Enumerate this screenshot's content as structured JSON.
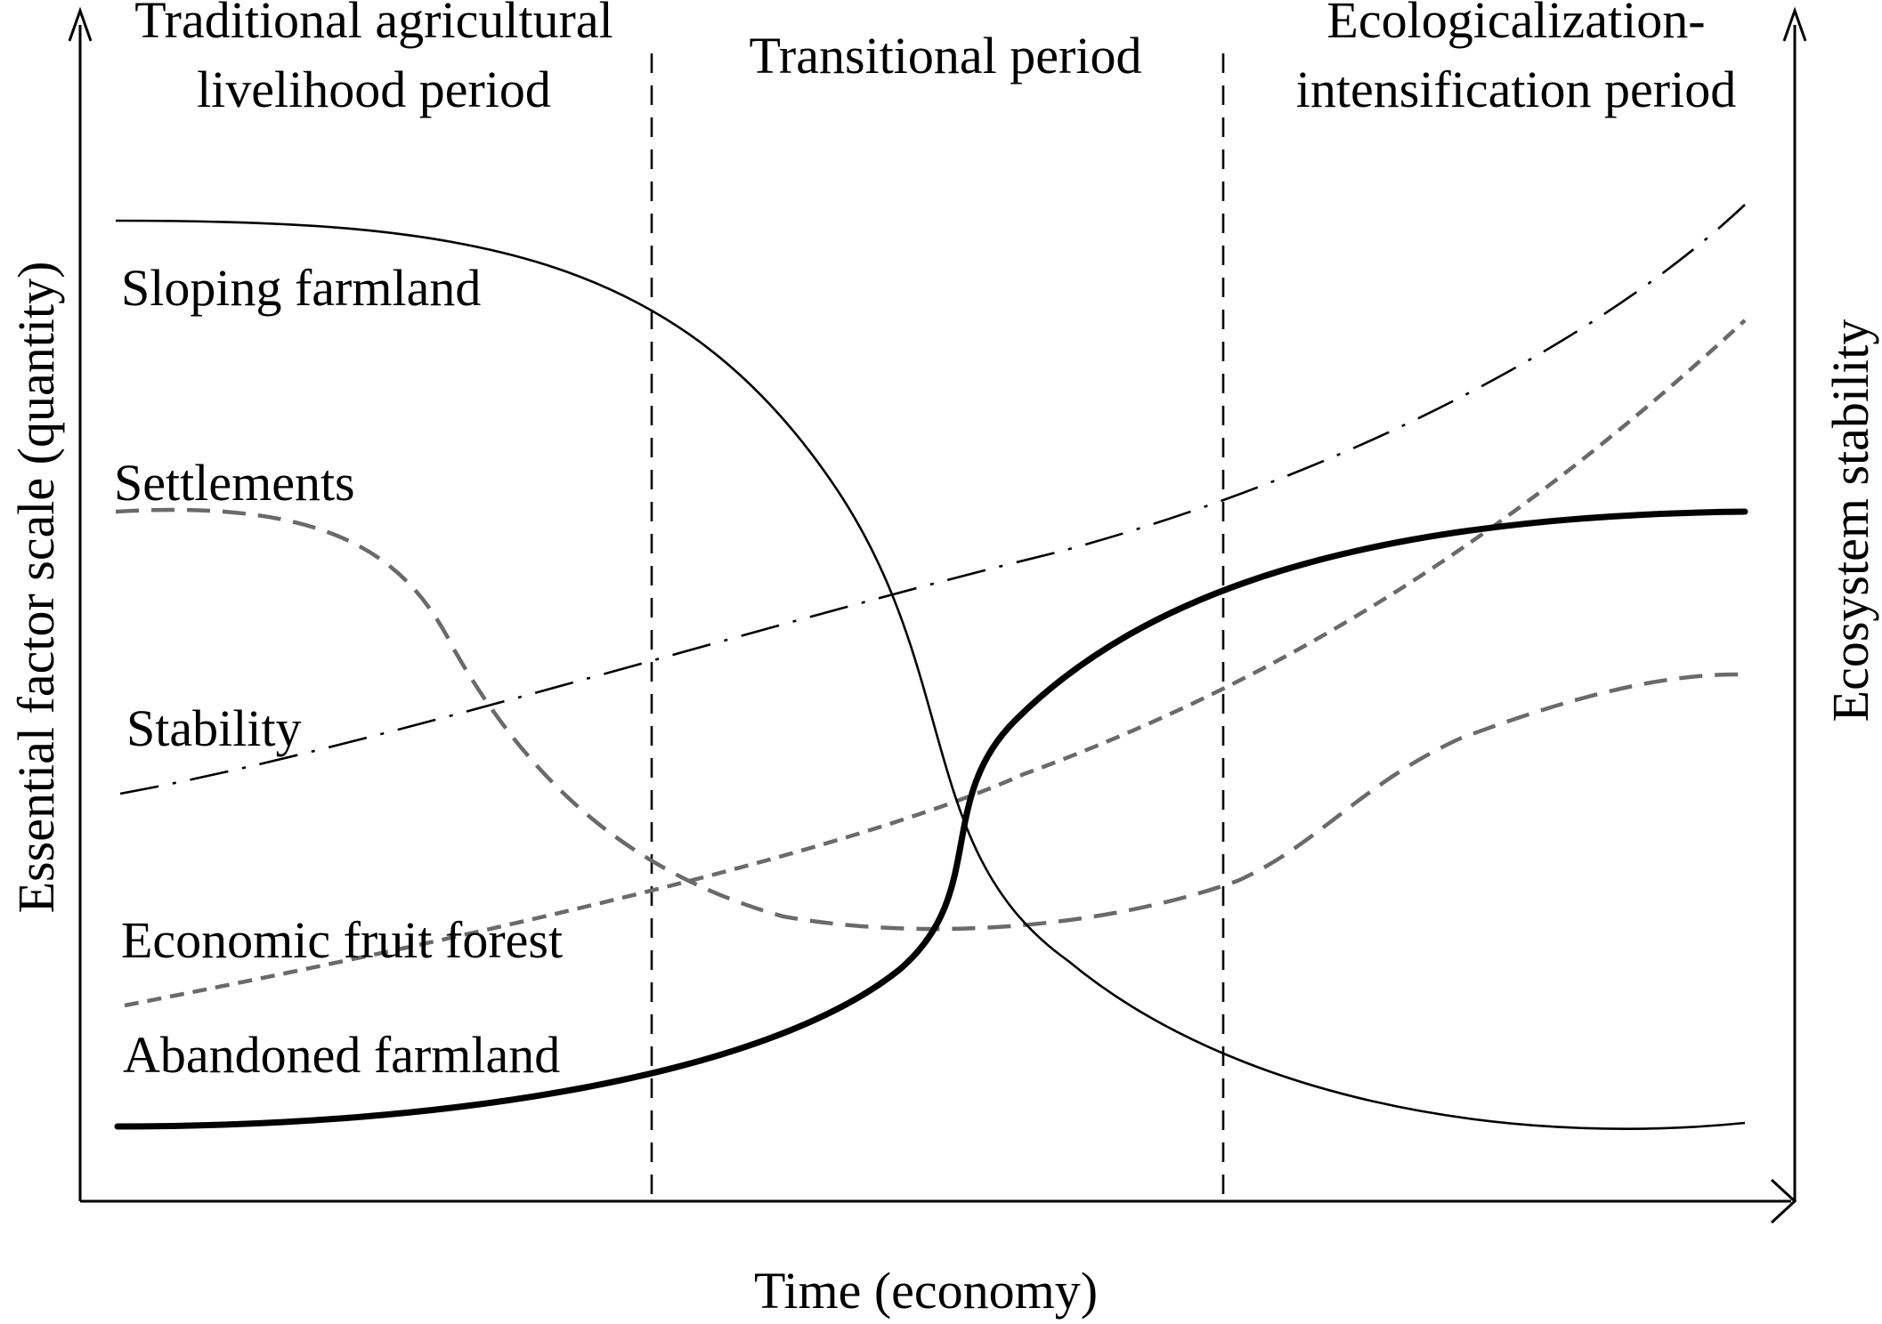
{
  "periods": {
    "traditional": [
      "Traditional agricultural",
      "livelihood period"
    ],
    "transitional": "Transitional period",
    "ecological": [
      "Ecologicalization-",
      "intensification period"
    ]
  },
  "axes": {
    "x_label": "Time (economy)",
    "y_left_label": "Essential factor scale (quantity)",
    "y_right_label": "Ecosystem stability"
  },
  "curves": {
    "sloping": "Sloping farmland",
    "settlements": "Settlements",
    "stability": "Stability",
    "fruit": "Economic fruit forest",
    "abandoned": "Abandoned farmland"
  },
  "colors": {
    "line": "#000000",
    "dashed_gray": "#6a6a6a",
    "background": "#ffffff"
  }
}
